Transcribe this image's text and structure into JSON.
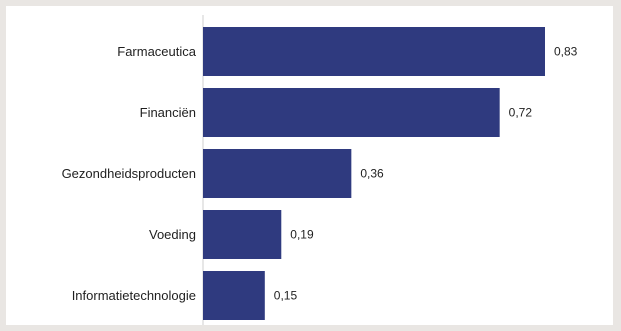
{
  "chart_data": {
    "type": "bar",
    "orientation": "horizontal",
    "title": "",
    "xlabel": "",
    "ylabel": "",
    "categories": [
      "Farmaceutica",
      "Financiën",
      "Gezondheidsproducten",
      "Voeding",
      "Informatietechnologie"
    ],
    "values": [
      0.83,
      0.72,
      0.36,
      0.19,
      0.15
    ],
    "value_labels": [
      "0,83",
      "0,72",
      "0,36",
      "0,19",
      "0,15"
    ],
    "xlim": [
      0,
      0.83
    ],
    "grid": false,
    "legend": "none",
    "bar_color": "#2f3a7f",
    "background_color": "#e9e6e3"
  }
}
